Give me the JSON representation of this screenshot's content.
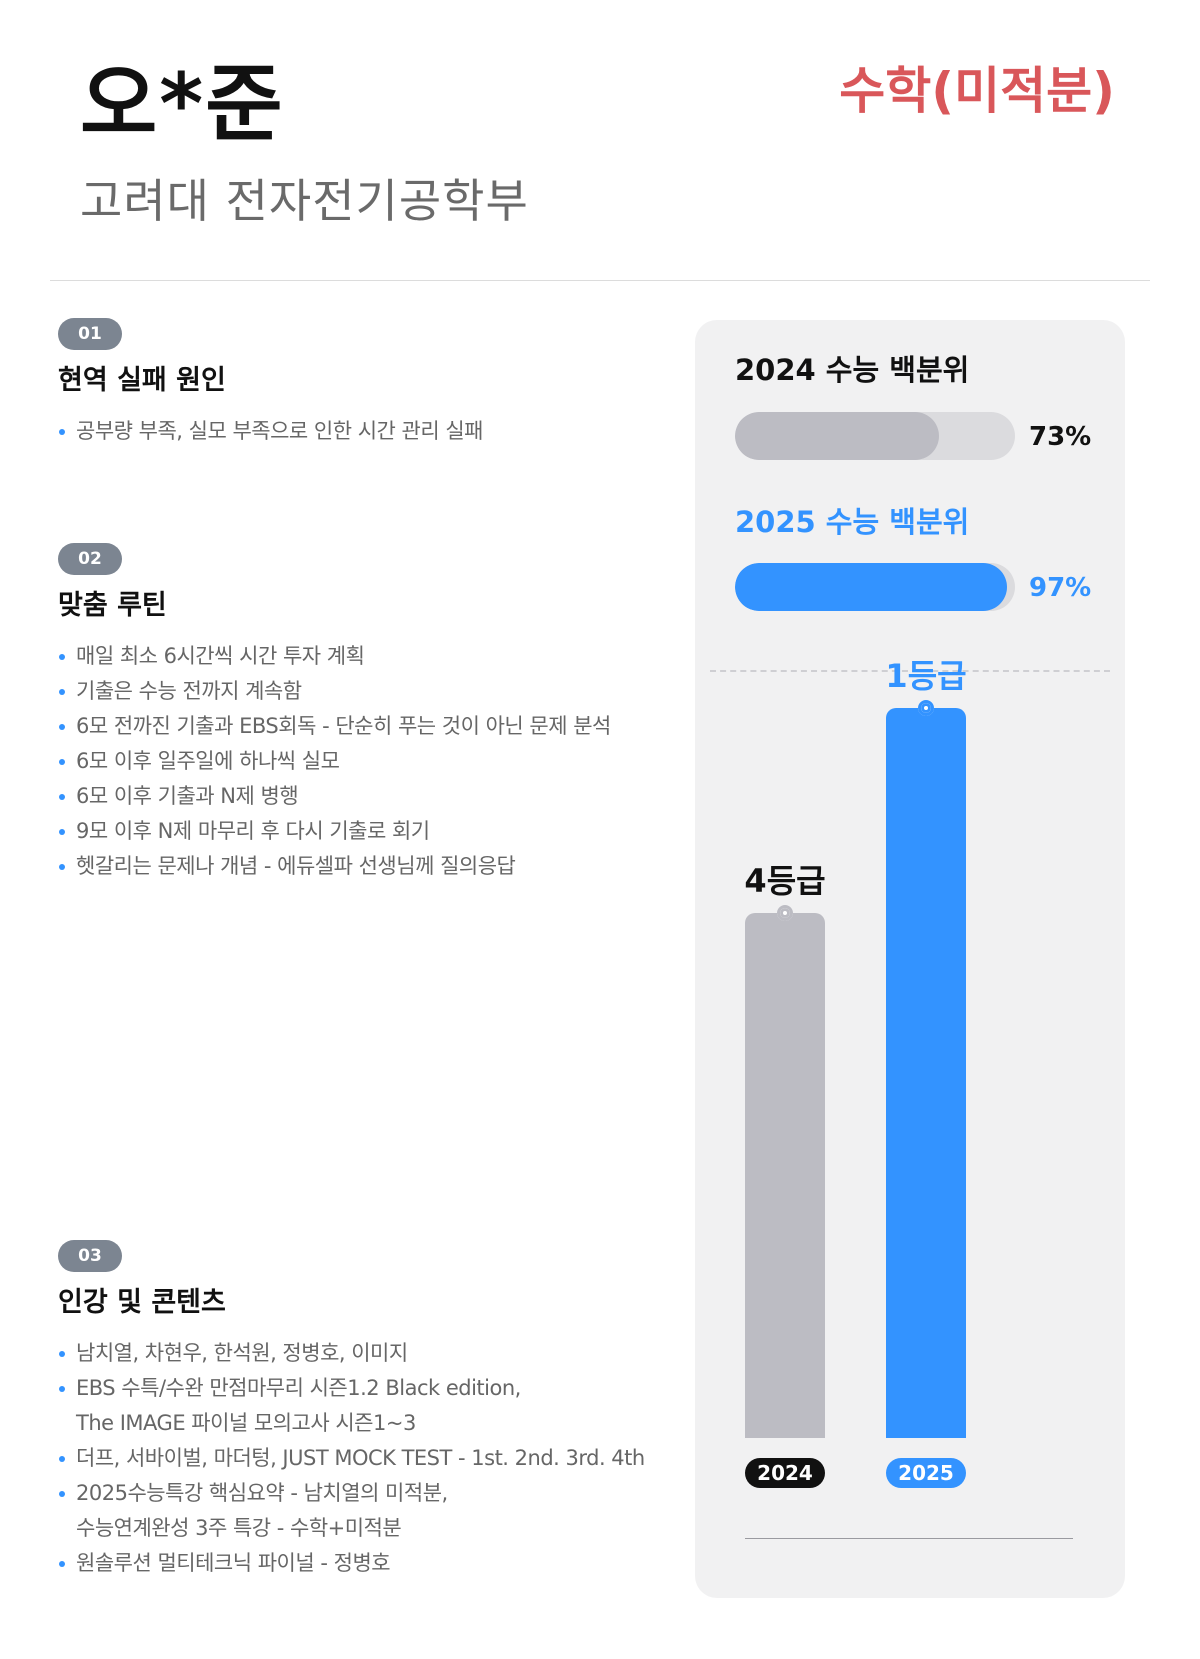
{
  "header": {
    "student_name": "오*준",
    "school": "고려대 전자전기공학부",
    "subject": "수학(미적분)"
  },
  "sections": [
    {
      "number": "01",
      "title": "현역 실패 원인",
      "items": [
        "공부량 부족, 실모 부족으로 인한 시간 관리 실패"
      ]
    },
    {
      "number": "02",
      "title": "맞춤 루틴",
      "items": [
        "매일 최소 6시간씩 시간 투자 계획",
        "기출은 수능 전까지 계속함",
        "6모 전까진 기출과 EBS회독 - 단순히 푸는 것이 아닌 문제 분석",
        "6모 이후 일주일에 하나씩 실모",
        "6모 이후 기출과 N제 병행",
        "9모 이후 N제 마무리 후 다시 기출로 회기",
        "헷갈리는 문제나 개념 - 에듀셀파 선생님께 질의응답"
      ]
    },
    {
      "number": "03",
      "title": "인강 및 콘텐츠",
      "items": [
        [
          "남치열, 차현우, 한석원, 정병호, 이미지"
        ],
        [
          "EBS 수특/수완 만점마무리 시즌1.2 Black edition,",
          "The IMAGE 파이널 모의고사 시즌1~3"
        ],
        [
          "더프, 서바이벌, 마더텅, JUST MOCK TEST - 1st. 2nd. 3rd. 4th"
        ],
        [
          "2025수능특강 핵심요약 - 남치열의 미적분,",
          "수능연계완성 3주 특강 - 수학+미적분"
        ],
        [
          "원솔루션 멀티테크닉 파이널 - 정병호"
        ]
      ]
    }
  ],
  "percentiles": [
    {
      "label": "2024 수능 백분위",
      "value_text": "73%",
      "value": 73,
      "color": "#bcbcc3",
      "label_color": "#111111"
    },
    {
      "label": "2025 수능 백분위",
      "value_text": "97%",
      "value": 97,
      "color": "#3393ff",
      "label_color": "#3393ff"
    }
  ],
  "chart_data": {
    "type": "bar",
    "categories": [
      "2024",
      "2025"
    ],
    "values": [
      4,
      1
    ],
    "value_labels": [
      "4등급",
      "1등급"
    ],
    "ylabel": "등급",
    "colors": [
      "#bcbcc3",
      "#3393ff"
    ],
    "label_colors": [
      "#111111",
      "#3393ff"
    ]
  }
}
